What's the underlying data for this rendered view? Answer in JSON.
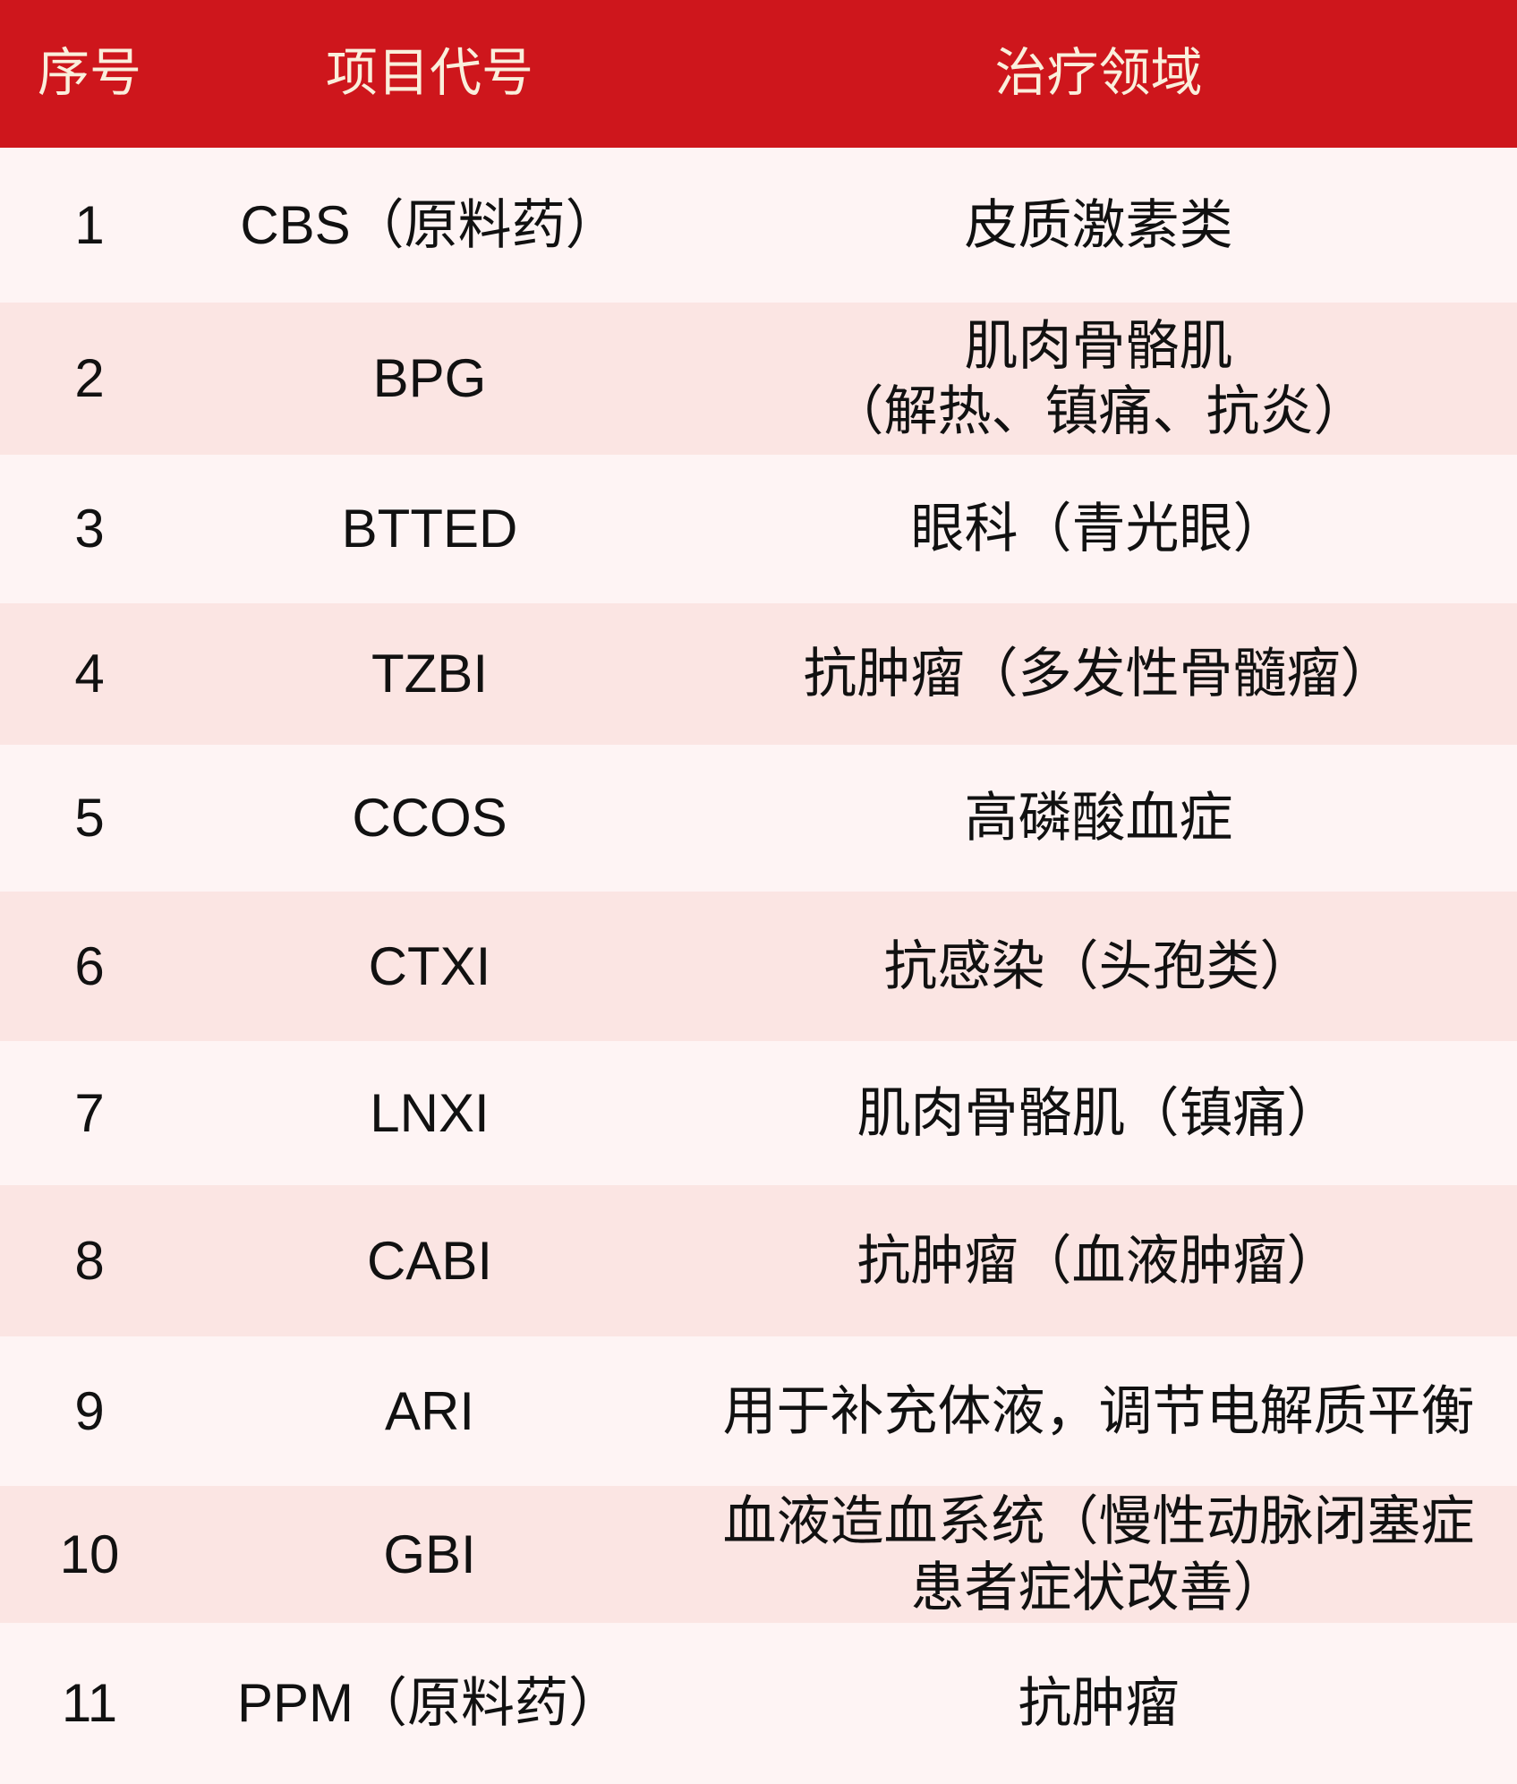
{
  "theme": {
    "header_bg": "#ce161c",
    "header_fg": "#faefdc",
    "row_odd_bg": "#fef4f4",
    "row_even_bg": "#fbe5e3",
    "body_fg": "#111111"
  },
  "table": {
    "columns": [
      {
        "key": "index",
        "label": "序号"
      },
      {
        "key": "code",
        "label": "项目代号"
      },
      {
        "key": "area",
        "label": "治疗领域"
      }
    ],
    "rows": [
      {
        "index": "1",
        "code": "CBS（原料药）",
        "area": "皮质激素类"
      },
      {
        "index": "2",
        "code": "BPG",
        "area": "肌肉骨骼肌\n（解热、镇痛、抗炎）"
      },
      {
        "index": "3",
        "code": "BTTED",
        "area": "眼科（青光眼）"
      },
      {
        "index": "4",
        "code": "TZBI",
        "area": "抗肿瘤（多发性骨髓瘤）"
      },
      {
        "index": "5",
        "code": "CCOS",
        "area": "高磷酸血症"
      },
      {
        "index": "6",
        "code": "CTXI",
        "area": "抗感染（头孢类）"
      },
      {
        "index": "7",
        "code": "LNXI",
        "area": "肌肉骨骼肌（镇痛）"
      },
      {
        "index": "8",
        "code": "CABI",
        "area": "抗肿瘤（血液肿瘤）"
      },
      {
        "index": "9",
        "code": "ARI",
        "area": "用于补充体液，调节电解质平衡"
      },
      {
        "index": "10",
        "code": "GBI",
        "area": "血液造血系统（慢性动脉闭塞症\n患者症状改善）"
      },
      {
        "index": "11",
        "code": "PPM（原料药）",
        "area": "抗肿瘤"
      }
    ]
  }
}
